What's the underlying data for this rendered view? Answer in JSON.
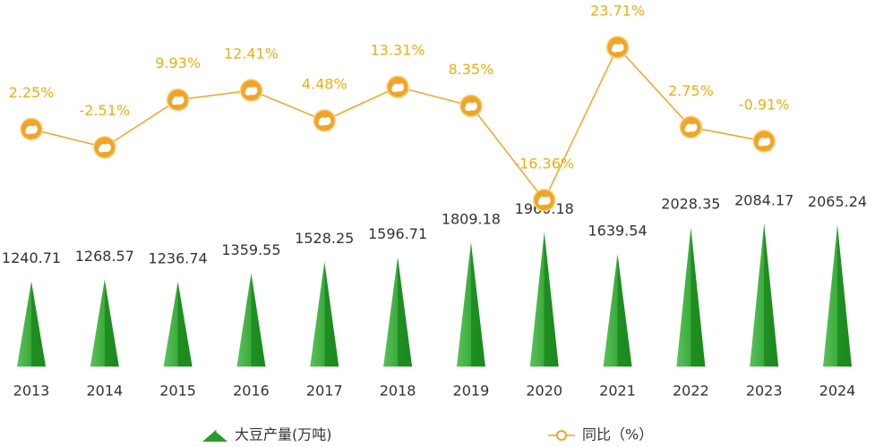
{
  "chart_data": {
    "type": "bar",
    "categories": [
      "2013",
      "2014",
      "2015",
      "2016",
      "2017",
      "2018",
      "2019",
      "2020",
      "2021",
      "2022",
      "2023",
      "2024"
    ],
    "series": [
      {
        "name": "大豆产量(万吨)",
        "type": "bar",
        "color": "#2a9a2a",
        "values": [
          1240.71,
          1268.57,
          1236.74,
          1359.55,
          1528.25,
          1596.71,
          1809.18,
          1960.18,
          1639.54,
          2028.35,
          2084.17,
          2065.24
        ]
      },
      {
        "name": "同比（%）",
        "type": "line",
        "axis": "y2",
        "color": "#f0a428",
        "values": [
          2.25,
          -2.51,
          9.93,
          12.41,
          4.48,
          13.31,
          8.35,
          -16.36,
          23.71,
          2.75,
          -0.91,
          null
        ],
        "value_labels": [
          "2.25%",
          "-2.51%",
          "9.93%",
          "12.41%",
          "4.48%",
          "13.31%",
          "8.35%",
          "-16.36%",
          "23.71%",
          "2.75%",
          "-0.91%",
          null
        ]
      }
    ],
    "ylim": [
      0,
      5000
    ],
    "y2lim": [
      -60,
      30
    ]
  }
}
